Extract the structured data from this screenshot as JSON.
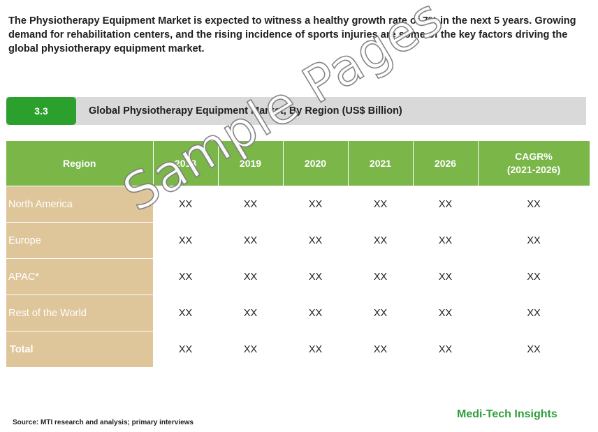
{
  "intro": "The Physiotherapy Equipment Market is expected to witness a healthy growth rate of 7% in the next 5 years. Growing demand for rehabilitation centers, and the rising incidence of sports injuries are some of the key factors driving the global physiotherapy equipment market.",
  "section": {
    "number": "3.3",
    "title": "Global  Physiotherapy Equipment Market, By Region (US$ Billion)"
  },
  "table": {
    "header_region": "Region",
    "years": [
      "2018",
      "2019",
      "2020",
      "2021",
      "2026"
    ],
    "cagr_line1": "CAGR%",
    "cagr_line2": "(2021-2026)",
    "rows": [
      {
        "region": "North America",
        "values": [
          "XX",
          "XX",
          "XX",
          "XX",
          "XX",
          "XX"
        ]
      },
      {
        "region": "Europe",
        "values": [
          "XX",
          "XX",
          "XX",
          "XX",
          "XX",
          "XX"
        ]
      },
      {
        "region": "APAC*",
        "values": [
          "XX",
          "XX",
          "XX",
          "XX",
          "XX",
          "XX"
        ]
      },
      {
        "region": "Rest of the World",
        "values": [
          "XX",
          "XX",
          "XX",
          "XX",
          "XX",
          "XX"
        ]
      },
      {
        "region": "Total",
        "values": [
          "XX",
          "XX",
          "XX",
          "XX",
          "XX",
          "XX"
        ]
      }
    ]
  },
  "watermark": "Sample Pages",
  "source": "Source: MTI research and analysis; primary interviews",
  "brand": "Medi-Tech Insights",
  "colors": {
    "section_number_bg": "#2ca02c",
    "section_bar_bg": "#d9d9d9",
    "header_bg": "#7ab648",
    "region_cell_bg": "#dfc59a",
    "brand": "#2e9e3a"
  }
}
